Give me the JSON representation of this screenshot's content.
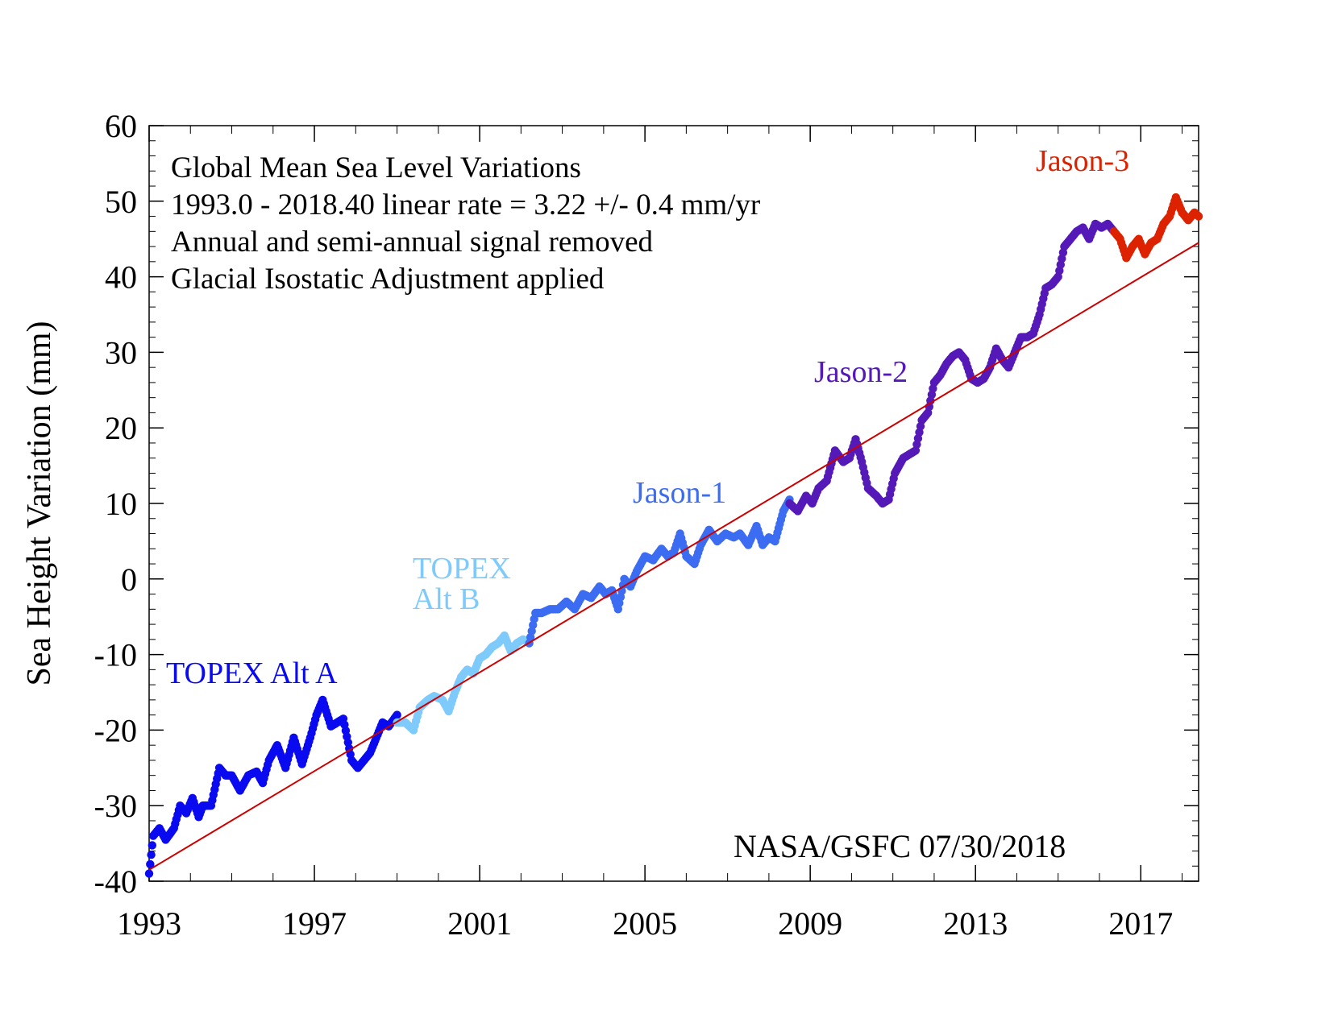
{
  "chart_data": {
    "type": "scatter",
    "title": "",
    "ylabel": "Sea Height Variation (mm)",
    "xlabel": "",
    "xlim": [
      1993.0,
      2018.4
    ],
    "ylim": [
      -40,
      60
    ],
    "x_ticks": [
      "1993",
      "1997",
      "2001",
      "2005",
      "2009",
      "2013",
      "2017"
    ],
    "y_ticks": [
      "60",
      "50",
      "40",
      "30",
      "20",
      "10",
      "0",
      "-10",
      "-20",
      "-30",
      "-40"
    ],
    "annotations": [
      "Global Mean Sea Level Variations",
      "1993.0 - 2018.40 linear rate  = 3.22 +/- 0.4 mm/yr",
      "Annual and semi-annual signal removed",
      "Glacial Isostatic Adjustment applied"
    ],
    "credit": "NASA/GSFC  07/30/2018",
    "trend_line": {
      "x": [
        1993.0,
        2018.4
      ],
      "y": [
        -38.5,
        44.5
      ],
      "color": "#cc0000"
    },
    "series": [
      {
        "name": "TOPEX Alt A",
        "color": "#0a0af0",
        "x": [
          1993.0,
          1993.1,
          1993.25,
          1993.4,
          1993.6,
          1993.75,
          1993.9,
          1994.05,
          1994.2,
          1994.3,
          1994.5,
          1994.7,
          1994.85,
          1995.0,
          1995.2,
          1995.4,
          1995.6,
          1995.75,
          1995.9,
          1996.1,
          1996.3,
          1996.5,
          1996.7,
          1996.9,
          1997.05,
          1997.2,
          1997.4,
          1997.55,
          1997.7,
          1997.9,
          1998.05,
          1998.2,
          1998.35,
          1998.5,
          1998.65,
          1998.8,
          1999.0
        ],
        "y": [
          -39,
          -34,
          -33,
          -34.5,
          -33,
          -30,
          -31,
          -29,
          -31.5,
          -30,
          -30,
          -25,
          -26,
          -26,
          -28,
          -26,
          -25.5,
          -27,
          -24,
          -22,
          -25,
          -21,
          -24.5,
          -21,
          -18,
          -16,
          -19.5,
          -19,
          -18.5,
          -24,
          -25,
          -24,
          -23,
          -21,
          -19,
          -19.5,
          -18
        ]
      },
      {
        "name": "TOPEX\nAlt B",
        "color": "#7ecbfb",
        "x": [
          1999.0,
          1999.2,
          1999.4,
          1999.55,
          1999.75,
          1999.9,
          2000.1,
          2000.25,
          2000.4,
          2000.55,
          2000.7,
          2000.85,
          2001.0,
          2001.15,
          2001.3,
          2001.45,
          2001.6,
          2001.75,
          2001.9,
          2002.05,
          2002.2
        ],
        "y": [
          -19,
          -19,
          -20,
          -17,
          -16,
          -15.5,
          -16,
          -17.5,
          -15,
          -13,
          -12,
          -12.5,
          -10.5,
          -10,
          -9,
          -8.5,
          -7.5,
          -9.5,
          -8.5,
          -8,
          -8.5
        ]
      },
      {
        "name": "Jason-1",
        "color": "#3b6cf2",
        "x": [
          2002.2,
          2002.35,
          2002.5,
          2002.7,
          2002.9,
          2003.1,
          2003.3,
          2003.5,
          2003.7,
          2003.9,
          2004.05,
          2004.2,
          2004.35,
          2004.5,
          2004.65,
          2004.8,
          2005.0,
          2005.2,
          2005.4,
          2005.55,
          2005.7,
          2005.85,
          2006.0,
          2006.2,
          2006.35,
          2006.55,
          2006.75,
          2006.95,
          2007.15,
          2007.3,
          2007.5,
          2007.7,
          2007.85,
          2008.0,
          2008.15,
          2008.35,
          2008.5
        ],
        "y": [
          -8.5,
          -4.5,
          -4.5,
          -4,
          -4,
          -3,
          -4,
          -2,
          -2.5,
          -1,
          -2,
          -1.5,
          -4,
          0,
          -1,
          1,
          3,
          2.5,
          4,
          3,
          3.5,
          6,
          3,
          2,
          4.5,
          6.5,
          5,
          6,
          5.5,
          6,
          4.5,
          7,
          4.5,
          5.5,
          5,
          9,
          10.5
        ]
      },
      {
        "name": "Jason-2",
        "color": "#5519b8",
        "x": [
          2008.5,
          2008.7,
          2008.9,
          2009.05,
          2009.2,
          2009.4,
          2009.6,
          2009.8,
          2009.95,
          2010.1,
          2010.25,
          2010.4,
          2010.6,
          2010.75,
          2010.9,
          2011.05,
          2011.25,
          2011.4,
          2011.55,
          2011.7,
          2011.85,
          2012.0,
          2012.15,
          2012.3,
          2012.45,
          2012.6,
          2012.75,
          2012.9,
          2013.05,
          2013.2,
          2013.35,
          2013.5,
          2013.65,
          2013.8,
          2013.95,
          2014.1,
          2014.25,
          2014.4,
          2014.55,
          2014.7,
          2014.85,
          2015.0,
          2015.15,
          2015.3,
          2015.45,
          2015.6,
          2015.75,
          2015.9,
          2016.05,
          2016.2,
          2016.35
        ],
        "y": [
          10,
          9,
          11,
          10,
          12,
          13,
          17,
          15.5,
          16,
          18.5,
          15.5,
          12,
          11,
          10,
          10.5,
          14,
          16,
          16.5,
          17,
          21,
          22,
          26,
          27,
          28.5,
          29.5,
          30,
          29,
          26.5,
          26,
          26.5,
          28,
          30.5,
          29,
          28,
          30,
          32,
          32,
          32.5,
          35,
          38.5,
          39,
          40,
          44,
          45,
          46,
          46.5,
          45,
          47,
          46.5,
          47,
          46
        ]
      },
      {
        "name": "Jason-3",
        "color": "#dd2200",
        "x": [
          2016.35,
          2016.5,
          2016.65,
          2016.8,
          2016.95,
          2017.1,
          2017.25,
          2017.4,
          2017.55,
          2017.7,
          2017.85,
          2018.0,
          2018.15,
          2018.3,
          2018.4
        ],
        "y": [
          46,
          45,
          42.5,
          44,
          45,
          43,
          44.5,
          45,
          47,
          48,
          50.5,
          48.5,
          47.5,
          48.5,
          48
        ]
      }
    ],
    "label_positions": [
      {
        "series": 0,
        "words": "TOPEX Alt A"
      },
      {
        "series": 1,
        "words": "TOPEX\nAlt B"
      },
      {
        "series": 2,
        "words": "Jason-1"
      },
      {
        "series": 3,
        "words": "Jason-2"
      },
      {
        "series": 4,
        "words": "Jason-3"
      }
    ]
  }
}
